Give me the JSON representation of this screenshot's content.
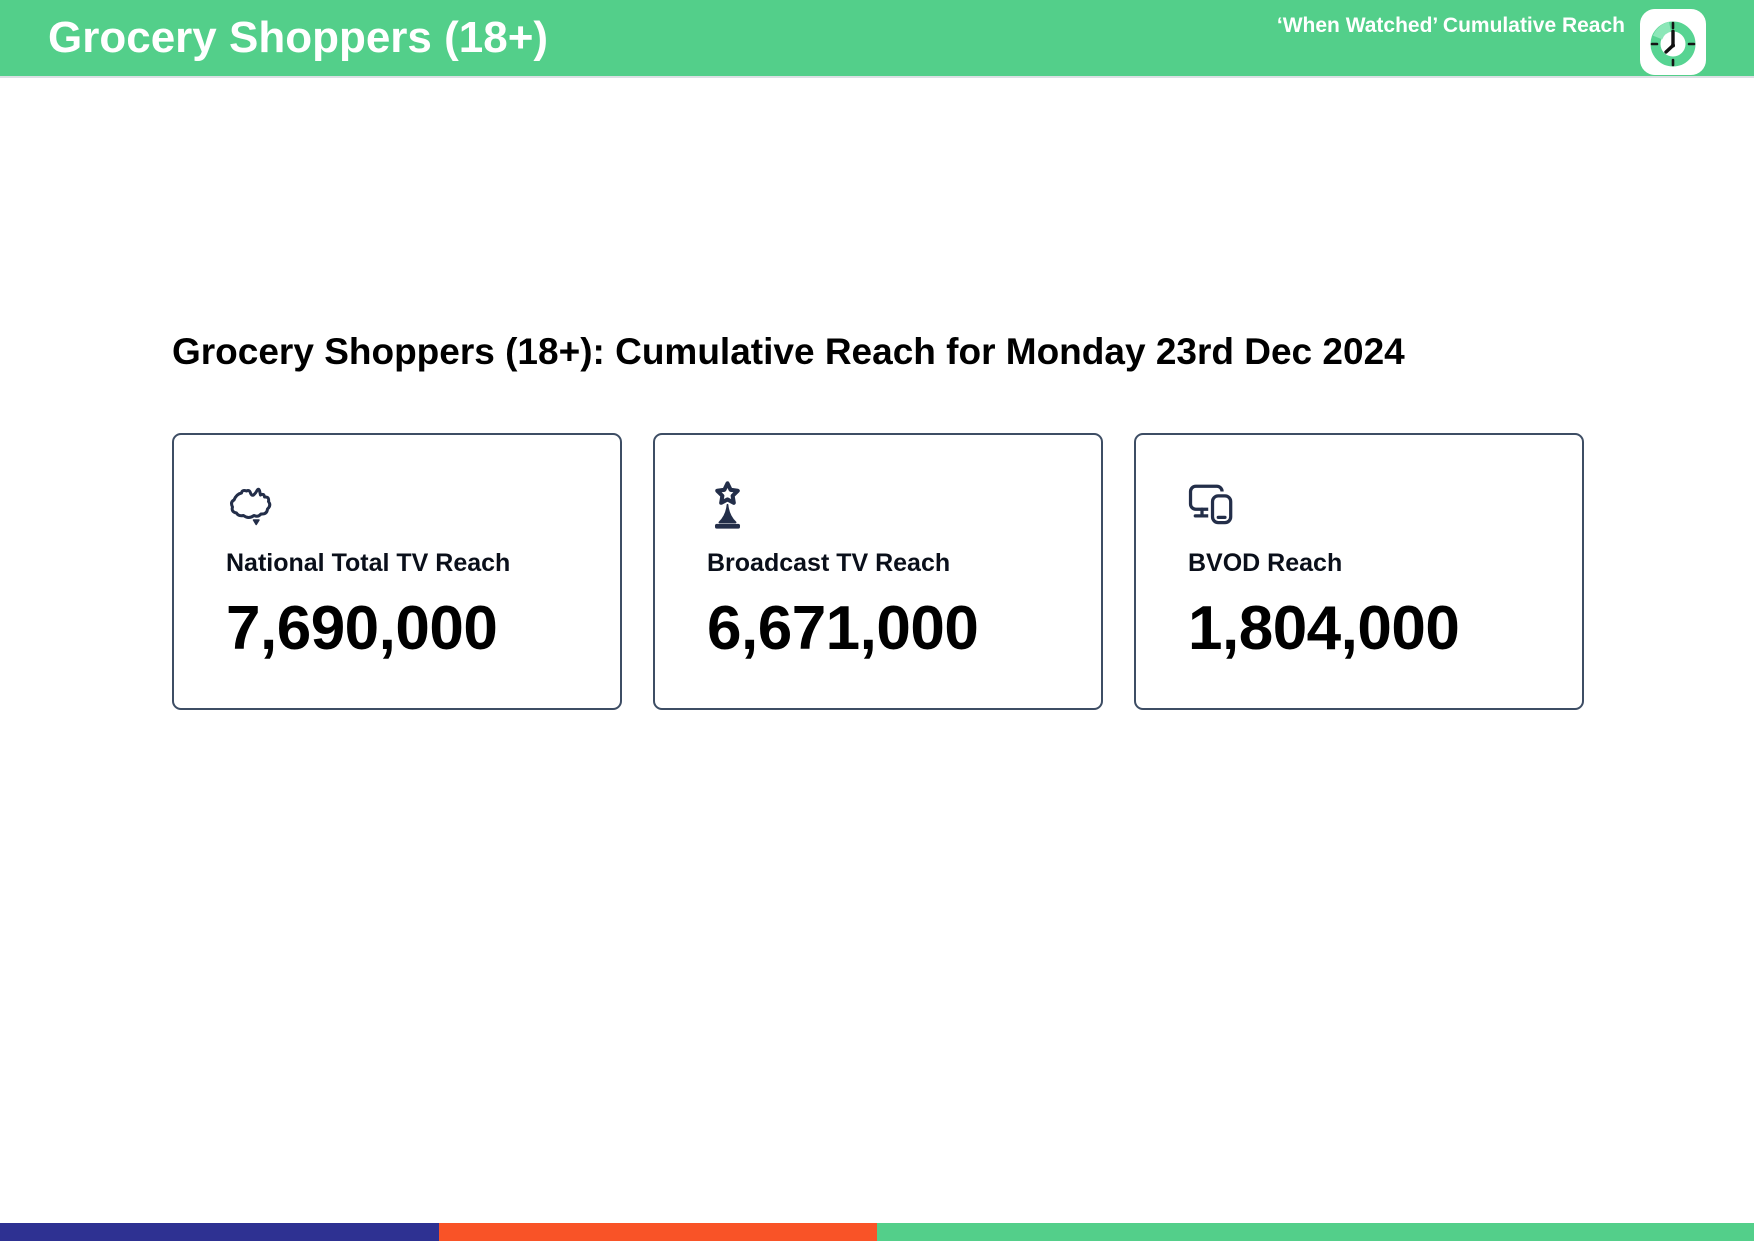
{
  "header": {
    "title": "Grocery Shoppers (18+)",
    "tagline": "‘When Watched’ Cumulative Reach",
    "logo_icon": "clock-icon"
  },
  "main": {
    "heading": "Grocery Shoppers (18+): Cumulative Reach for Monday 23rd Dec 2024",
    "cards": [
      {
        "icon": "australia-map-icon",
        "label": "National Total TV Reach",
        "value": "7,690,000"
      },
      {
        "icon": "broadcast-tower-icon",
        "label": "Broadcast TV Reach",
        "value": "6,671,000"
      },
      {
        "icon": "tv-phone-devices-icon",
        "label": "BVOD Reach",
        "value": "1,804,000"
      }
    ]
  },
  "footer": {
    "segments": [
      {
        "name": "blue-segment",
        "color": "#2E3192",
        "width_pct": 25
      },
      {
        "name": "orange-segment",
        "color": "#F95327",
        "width_pct": 25
      },
      {
        "name": "green-segment",
        "color": "#53CF8A",
        "width_pct": 50
      }
    ]
  },
  "colors": {
    "header_green": "#53CF8A",
    "icon_navy": "#232E49",
    "card_border": "#3D4D64",
    "separator": "#DCE0E4"
  }
}
